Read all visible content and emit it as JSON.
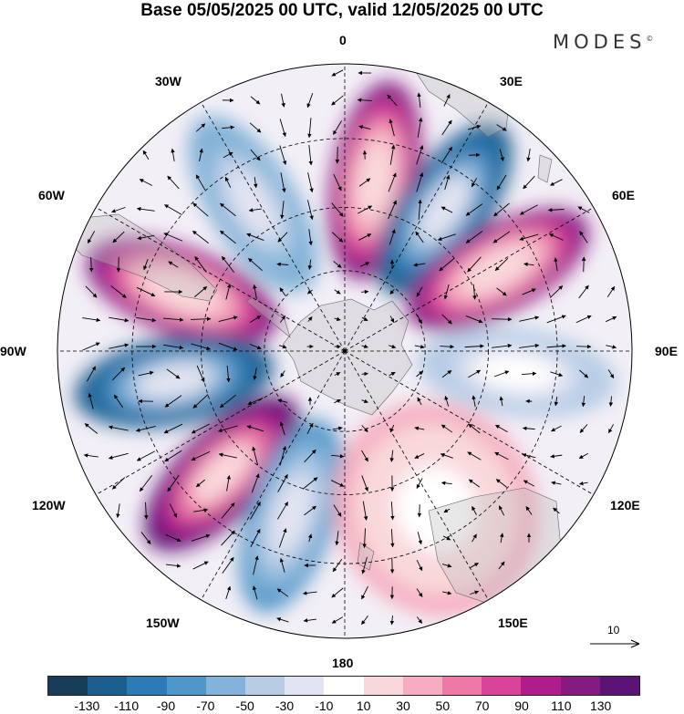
{
  "title": "Base 05/05/2025 00 UTC, valid 12/05/2025 00 UTC",
  "brand": "MODES",
  "brand_mark": "©",
  "longitude_labels": {
    "deg0": "0",
    "deg30e": "30E",
    "deg60e": "60E",
    "deg90e": "90E",
    "deg120e": "120E",
    "deg150e": "150E",
    "deg180": "180",
    "deg150w": "150W",
    "deg120w": "120W",
    "deg90w": "90W",
    "deg60w": "60W",
    "deg30w": "30W"
  },
  "reference_vector": {
    "label": "10"
  },
  "colorbar": {
    "colors": [
      "#173d5a",
      "#1c5f8f",
      "#2d7bb4",
      "#4f97c8",
      "#83b3d8",
      "#b7cde6",
      "#e3e4f1",
      "#ffffff",
      "#f9d8dc",
      "#f5adbf",
      "#ef79a6",
      "#d8449a",
      "#b11c8d",
      "#861a83",
      "#5b1475"
    ],
    "ticks": [
      "-130",
      "-110",
      "-90",
      "-70",
      "-50",
      "-30",
      "-10",
      "10",
      "30",
      "50",
      "70",
      "90",
      "110",
      "130"
    ]
  },
  "map_data": {
    "projection": "south-polar-stereographic",
    "center_lon_top": 0,
    "field_anomalies": [
      {
        "name": "anomaly-0E",
        "lon": 10,
        "value": 110
      },
      {
        "name": "anomaly-35E",
        "lon": 35,
        "value": -130
      },
      {
        "name": "anomaly-65E",
        "lon": 62,
        "value": 110
      },
      {
        "name": "anomaly-95E",
        "lon": 97,
        "value": -50
      },
      {
        "name": "anomaly-30W",
        "lon": -32,
        "value": -70
      },
      {
        "name": "anomaly-70W",
        "lon": -70,
        "value": 110
      },
      {
        "name": "anomaly-100W",
        "lon": -100,
        "value": -130
      },
      {
        "name": "anomaly-135W",
        "lon": -135,
        "value": 130
      },
      {
        "name": "anomaly-160W",
        "lon": -162,
        "value": -90
      },
      {
        "name": "anomaly-150E",
        "lon": 150,
        "value": 30
      }
    ]
  }
}
